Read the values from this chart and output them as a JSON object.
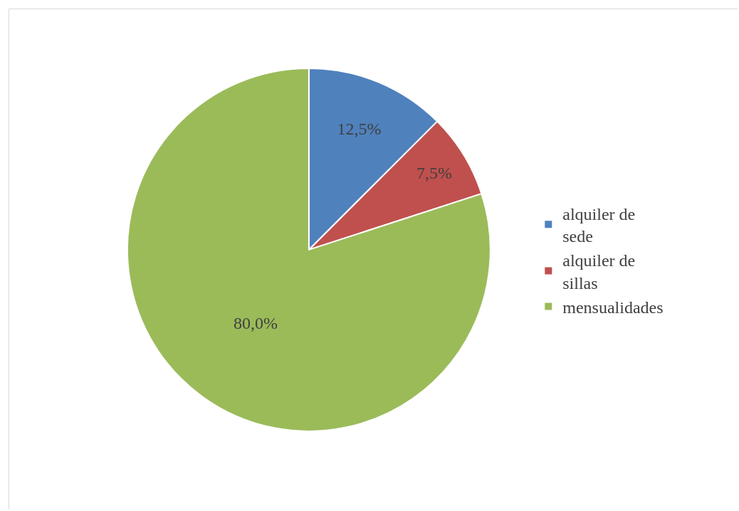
{
  "chart_data": {
    "type": "pie",
    "categories": [
      "alquiler de sede",
      "alquiler de sillas",
      "mensualidades"
    ],
    "values": [
      12.5,
      7.5,
      80
    ],
    "value_labels": [
      "12,5%",
      "7,5%",
      "80,0%"
    ],
    "colors": [
      "#4f81bd",
      "#c0504d",
      "#9bbb59"
    ],
    "legend": "right"
  }
}
